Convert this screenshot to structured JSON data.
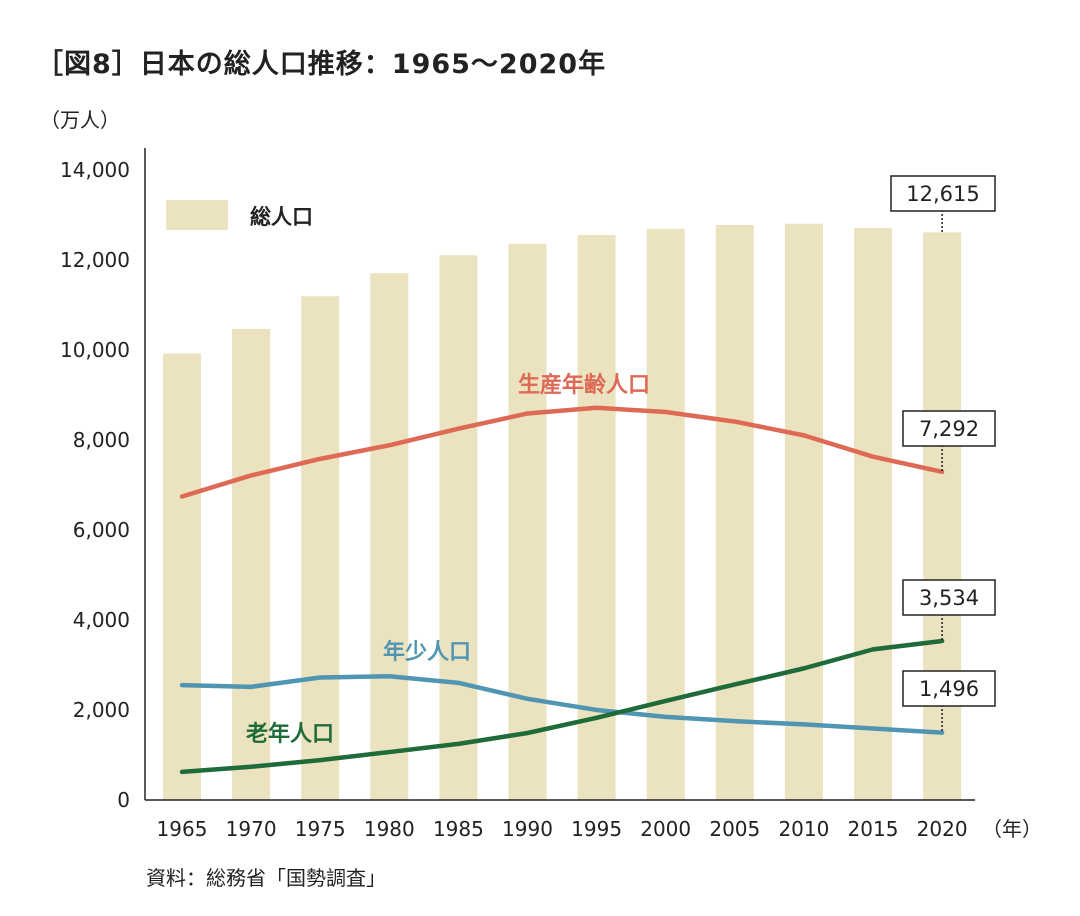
{
  "title": "［図8］日本の総人口推移：1965〜2020年",
  "unit_label": "（万人）",
  "source": "資料：総務省「国勢調査」",
  "chart_data": {
    "type": "bar+line",
    "title": "［図8］日本の総人口推移：1965〜2020年",
    "ylabel": "（万人）",
    "xlabel_suffix": "（年）",
    "ylim": [
      0,
      14000
    ],
    "yticks": [
      0,
      2000,
      4000,
      6000,
      8000,
      10000,
      12000,
      14000
    ],
    "ytick_labels": [
      "0",
      "2,000",
      "4,000",
      "6,000",
      "8,000",
      "10,000",
      "12,000",
      "14,000"
    ],
    "categories": [
      "1965",
      "1970",
      "1975",
      "1980",
      "1985",
      "1990",
      "1995",
      "2000",
      "2005",
      "2010",
      "2015",
      "2020"
    ],
    "legend": {
      "position": "top-left",
      "entries": [
        "総人口"
      ]
    },
    "series": [
      {
        "name": "総人口",
        "kind": "bar",
        "color": "#ebe2bf",
        "values": [
          9921,
          10467,
          11194,
          11706,
          12105,
          12361,
          12557,
          12693,
          12777,
          12806,
          12709,
          12615
        ]
      },
      {
        "name": "生産年齢人口",
        "kind": "line",
        "color": "#de6a56",
        "values": [
          6744,
          7212,
          7581,
          7883,
          8251,
          8590,
          8716,
          8622,
          8409,
          8103,
          7629,
          7292
        ]
      },
      {
        "name": "年少人口",
        "kind": "line",
        "color": "#5096b2",
        "values": [
          2553,
          2515,
          2722,
          2751,
          2603,
          2249,
          2001,
          1847,
          1752,
          1680,
          1589,
          1496
        ]
      },
      {
        "name": "老年人口",
        "kind": "line",
        "color": "#1f6b3a",
        "values": [
          624,
          739,
          887,
          1065,
          1247,
          1489,
          1826,
          2201,
          2567,
          2925,
          3347,
          3534
        ]
      }
    ],
    "annotations": [
      "12,615",
      "7,292",
      "3,534",
      "1,496"
    ]
  }
}
